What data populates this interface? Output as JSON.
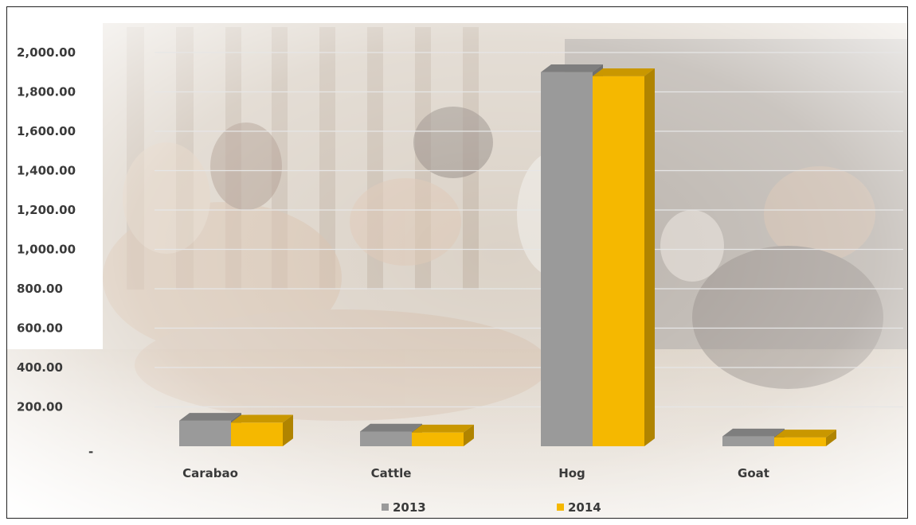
{
  "chart_data": {
    "type": "bar",
    "categories": [
      "Carabao",
      "Cattle",
      "Hog",
      "Goat"
    ],
    "series": [
      {
        "name": "2013",
        "values": [
          130,
          75,
          1900,
          50
        ],
        "color": "#9a9a9a"
      },
      {
        "name": "2014",
        "values": [
          120,
          70,
          1880,
          45
        ],
        "color": "#f5b800"
      }
    ],
    "ylim": [
      0,
      2000
    ],
    "y_ticks": [
      {
        "value": 200,
        "label": "200.00"
      },
      {
        "value": 400,
        "label": "400.00"
      },
      {
        "value": 600,
        "label": "600.00"
      },
      {
        "value": 800,
        "label": "800.00"
      },
      {
        "value": 1000,
        "label": "1,000.00"
      },
      {
        "value": 1200,
        "label": "1,200.00"
      },
      {
        "value": 1400,
        "label": "1,400.00"
      },
      {
        "value": 1600,
        "label": "1,600.00"
      },
      {
        "value": 1800,
        "label": "1,800.00"
      },
      {
        "value": 2000,
        "label": "2,000.00"
      }
    ],
    "zero_tick_label": "-",
    "grid": true,
    "bar_style": "3d",
    "legend_position": "bottom",
    "background": "faded photo of goats in a pen"
  }
}
